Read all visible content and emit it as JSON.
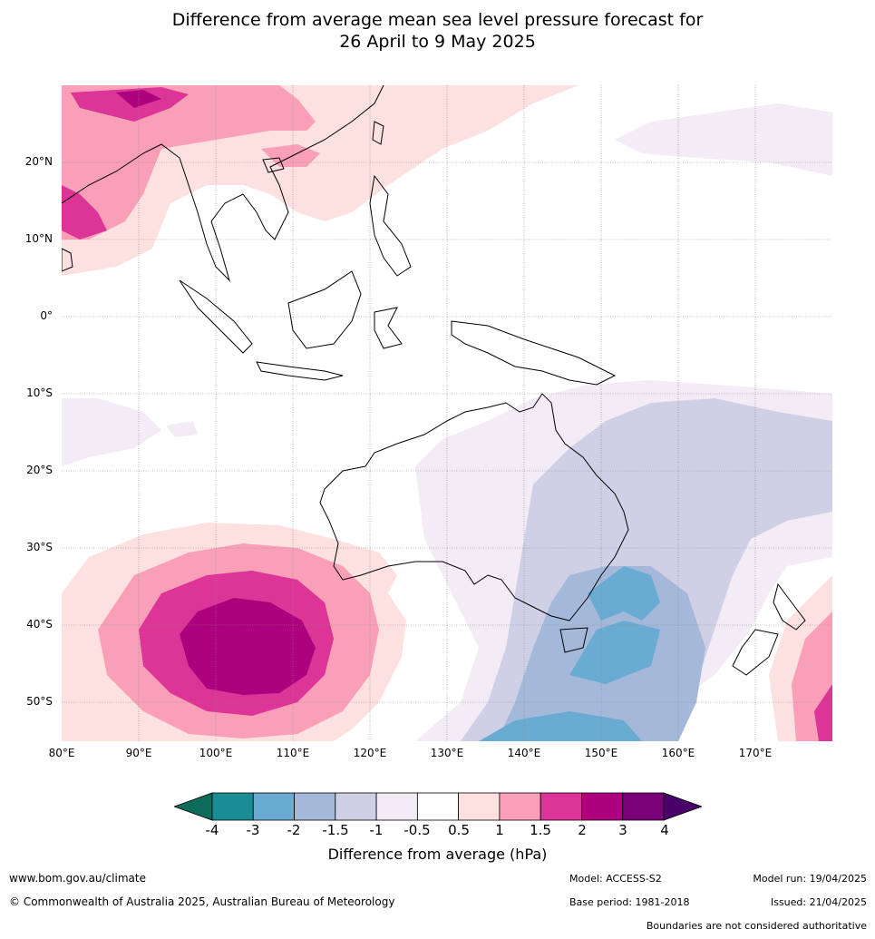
{
  "title_line1": "Difference from average mean sea level pressure forecast for",
  "title_line2": "26 April to 9 May 2025",
  "lat_labels": [
    "20°N",
    "10°N",
    "0°",
    "10°S",
    "20°S",
    "30°S",
    "40°S",
    "50°S"
  ],
  "lon_labels": [
    "80°E",
    "90°E",
    "100°E",
    "110°E",
    "120°E",
    "130°E",
    "140°E",
    "150°E",
    "160°E",
    "170°E"
  ],
  "colorbar": {
    "ticks": [
      "-4",
      "-3",
      "-2",
      "-1.5",
      "-1",
      "-0.5",
      "0.5",
      "1",
      "1.5",
      "2",
      "3",
      "4"
    ],
    "colors": [
      "#1a8c95",
      "#69abd1",
      "#a4b8d9",
      "#cfd0e6",
      "#f3ebf5",
      "#ffffff",
      "#fde0e0",
      "#f9a0b8",
      "#dd3497",
      "#ae017e",
      "#7a0177"
    ],
    "under_color": "#0d6b5a",
    "over_color": "#49006a",
    "title": "Difference from average (hPa)"
  },
  "footer": {
    "url": "www.bom.gov.au/climate",
    "copyright": "© Commonwealth of Australia 2025, Australian Bureau of Meteorology",
    "model": "Model: ACCESS-S2",
    "base_period": "Base period: 1981-2018",
    "model_run": "Model run: 19/04/2025",
    "issued": "Issued: 21/04/2025",
    "disclaimer": "Boundaries are not considered authoritative"
  }
}
